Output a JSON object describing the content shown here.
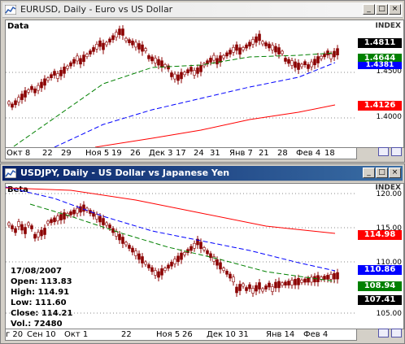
{
  "top_window": {
    "title": "EURUSD, Daily - Euro vs US Dollar",
    "indicator_label": "Data",
    "index_label": "INDEX",
    "price_ticks": [
      "1.4500",
      "1.4000"
    ],
    "badges": [
      {
        "text": "1.4811",
        "color": "#000000"
      },
      {
        "text": "1.4644",
        "color": "#008000"
      },
      {
        "text": "1.4381",
        "color": "#0000ff"
      },
      {
        "text": "1.4126",
        "color": "#ff0000"
      }
    ],
    "x_ticks": [
      "Окт 8",
      "22",
      "29",
      "Ноя 5",
      "19",
      "26",
      "Дек 3",
      "17",
      "24",
      "31",
      "Янв 7",
      "21",
      "28",
      "Фев 4",
      "18"
    ]
  },
  "bottom_window": {
    "title": "USDJPY, Daily - US Dollar vs Japanese Yen",
    "indicator_label": "Beta",
    "index_label": "INDEX",
    "price_ticks": [
      "120.00",
      "115.00",
      "110.00",
      "105.00"
    ],
    "badges": [
      {
        "text": "114.98",
        "color": "#ff0000"
      },
      {
        "text": "110.86",
        "color": "#0000ff"
      },
      {
        "text": "108.94",
        "color": "#008000"
      },
      {
        "text": "107.41",
        "color": "#000000"
      }
    ],
    "x_ticks": [
      "г 20",
      "Сен 10",
      "Окт 1",
      "22",
      "Ноя 5",
      "26",
      "Дек 10",
      "31",
      "Янв 14",
      "Фев 4"
    ],
    "ohlc": {
      "date": "17/08/2007",
      "open": "Open: 113.83",
      "high": "High: 114.91",
      "low": "Low: 111.60",
      "close": "Close: 114.21",
      "vol": "Vol.: 72480"
    }
  },
  "window_buttons": {
    "minimize": "_",
    "maximize": "□",
    "close": "×"
  },
  "colors": {
    "ma_fast": "#008000",
    "ma_mid": "#0000ff",
    "ma_slow": "#ff0000",
    "bars": "#8b0000"
  }
}
